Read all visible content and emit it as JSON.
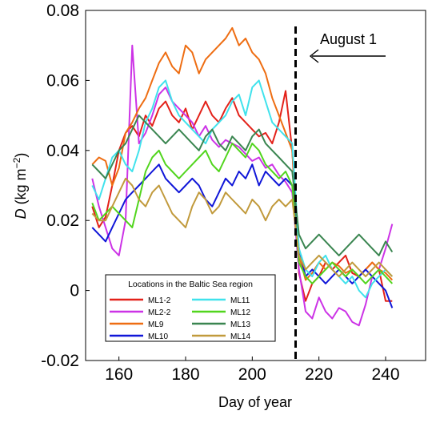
{
  "chart_data": {
    "type": "line",
    "xlabel": "Day of year",
    "ylabel_italic": "D",
    "ylabel_unit": "(kg m",
    "ylabel_exp": "−2",
    "ylabel_close": ")",
    "xlim": [
      150,
      252
    ],
    "ylim": [
      -0.02,
      0.08
    ],
    "xticks": [
      160,
      180,
      200,
      220,
      240
    ],
    "yticks": [
      {
        "value": -0.02,
        "label": "-0.02"
      },
      {
        "value": 0,
        "label": "0"
      },
      {
        "value": 0.02,
        "label": "0.02"
      },
      {
        "value": 0.04,
        "label": "0.04"
      },
      {
        "value": 0.06,
        "label": "0.06"
      },
      {
        "value": 0.08,
        "label": "0.08"
      }
    ],
    "annotation": {
      "label": "August 1",
      "x": 213
    },
    "legend": {
      "title": "Locations in the Baltic Sea region",
      "placement": "bottom-left"
    },
    "x": [
      152,
      154,
      156,
      158,
      160,
      162,
      164,
      166,
      168,
      170,
      172,
      174,
      176,
      178,
      180,
      182,
      184,
      186,
      188,
      190,
      192,
      194,
      196,
      198,
      200,
      202,
      204,
      206,
      208,
      210,
      212,
      214,
      216,
      218,
      220,
      222,
      224,
      226,
      228,
      230,
      232,
      234,
      236,
      238,
      240,
      242
    ],
    "series": [
      {
        "name": "ML1-2",
        "color": "#e32119",
        "values": [
          0.024,
          0.018,
          0.021,
          0.03,
          0.04,
          0.045,
          0.047,
          0.044,
          0.05,
          0.047,
          0.052,
          0.054,
          0.05,
          0.048,
          0.052,
          0.046,
          0.05,
          0.054,
          0.05,
          0.048,
          0.052,
          0.055,
          0.05,
          0.048,
          0.046,
          0.044,
          0.045,
          0.042,
          0.048,
          0.057,
          0.04,
          0.005,
          -0.003,
          0.002,
          0.004,
          0.008,
          0.006,
          0.008,
          0.01,
          0.005,
          0.004,
          0.006,
          0.008,
          0.006,
          -0.003,
          -0.003
        ]
      },
      {
        "name": "ML2-2",
        "color": "#cc33e6",
        "values": [
          0.032,
          0.024,
          0.018,
          0.012,
          0.01,
          0.02,
          0.07,
          0.042,
          0.045,
          0.05,
          0.056,
          0.058,
          0.054,
          0.052,
          0.05,
          0.048,
          0.044,
          0.047,
          0.043,
          0.041,
          0.043,
          0.042,
          0.041,
          0.039,
          0.037,
          0.038,
          0.035,
          0.036,
          0.033,
          0.031,
          0.028,
          0.006,
          -0.006,
          -0.008,
          -0.002,
          -0.006,
          -0.008,
          -0.005,
          -0.006,
          -0.009,
          -0.01,
          -0.004,
          0.004,
          0.006,
          0.012,
          0.019
        ]
      },
      {
        "name": "ML9",
        "color": "#ee6d12",
        "values": [
          0.036,
          0.038,
          0.037,
          0.03,
          0.035,
          0.045,
          0.048,
          0.052,
          0.055,
          0.06,
          0.065,
          0.068,
          0.064,
          0.062,
          0.07,
          0.068,
          0.062,
          0.066,
          0.068,
          0.07,
          0.072,
          0.075,
          0.07,
          0.072,
          0.068,
          0.066,
          0.062,
          0.055,
          0.05,
          0.045,
          0.04,
          0.01,
          0.003,
          0.005,
          0.008,
          0.006,
          0.008,
          0.007,
          0.005,
          0.006,
          0.004,
          0.006,
          0.008,
          0.006,
          0.005,
          0.003
        ]
      },
      {
        "name": "ML10",
        "color": "#1016d8",
        "values": [
          0.018,
          0.016,
          0.014,
          0.018,
          0.022,
          0.026,
          0.028,
          0.03,
          0.032,
          0.034,
          0.036,
          0.032,
          0.03,
          0.028,
          0.03,
          0.032,
          0.03,
          0.026,
          0.024,
          0.028,
          0.032,
          0.03,
          0.034,
          0.032,
          0.036,
          0.03,
          0.034,
          0.032,
          0.03,
          0.032,
          0.03,
          0.012,
          0.004,
          0.006,
          0.004,
          0.002,
          0.004,
          0.006,
          0.004,
          0.002,
          0.004,
          0.006,
          0.004,
          0.002,
          0.0,
          -0.005
        ]
      },
      {
        "name": "ML11",
        "color": "#40e2ec",
        "values": [
          0.03,
          0.026,
          0.032,
          0.038,
          0.04,
          0.036,
          0.034,
          0.04,
          0.048,
          0.052,
          0.058,
          0.06,
          0.054,
          0.05,
          0.048,
          0.046,
          0.044,
          0.042,
          0.046,
          0.048,
          0.05,
          0.054,
          0.056,
          0.05,
          0.058,
          0.06,
          0.054,
          0.048,
          0.046,
          0.044,
          0.042,
          0.012,
          0.006,
          0.004,
          0.008,
          0.01,
          0.006,
          0.004,
          0.002,
          0.004,
          0.0,
          -0.002,
          0.002,
          0.004,
          0.006,
          0.004
        ]
      },
      {
        "name": "ML12",
        "color": "#51d51d",
        "values": [
          0.025,
          0.02,
          0.022,
          0.024,
          0.022,
          0.02,
          0.018,
          0.026,
          0.034,
          0.038,
          0.04,
          0.036,
          0.034,
          0.032,
          0.034,
          0.036,
          0.038,
          0.04,
          0.036,
          0.034,
          0.038,
          0.042,
          0.04,
          0.038,
          0.042,
          0.04,
          0.036,
          0.034,
          0.032,
          0.034,
          0.03,
          0.008,
          0.004,
          0.002,
          0.004,
          0.006,
          0.008,
          0.006,
          0.004,
          0.006,
          0.004,
          0.002,
          0.004,
          0.006,
          0.004,
          0.002
        ]
      },
      {
        "name": "ML13",
        "color": "#3a8550",
        "values": [
          0.036,
          0.034,
          0.032,
          0.036,
          0.04,
          0.042,
          0.046,
          0.05,
          0.048,
          0.046,
          0.044,
          0.042,
          0.044,
          0.046,
          0.044,
          0.042,
          0.04,
          0.044,
          0.046,
          0.042,
          0.04,
          0.044,
          0.042,
          0.04,
          0.044,
          0.046,
          0.042,
          0.04,
          0.038,
          0.036,
          0.034,
          0.016,
          0.012,
          0.014,
          0.016,
          0.014,
          0.012,
          0.01,
          0.012,
          0.014,
          0.016,
          0.014,
          0.012,
          0.01,
          0.014,
          0.011
        ]
      },
      {
        "name": "ML14",
        "color": "#c19a3c",
        "values": [
          0.022,
          0.02,
          0.02,
          0.024,
          0.028,
          0.032,
          0.03,
          0.026,
          0.024,
          0.028,
          0.03,
          0.026,
          0.022,
          0.02,
          0.018,
          0.024,
          0.028,
          0.026,
          0.022,
          0.024,
          0.028,
          0.026,
          0.024,
          0.022,
          0.026,
          0.024,
          0.02,
          0.024,
          0.026,
          0.024,
          0.026,
          0.01,
          0.006,
          0.008,
          0.01,
          0.008,
          0.006,
          0.004,
          0.006,
          0.008,
          0.006,
          0.004,
          0.006,
          0.008,
          0.006,
          0.004
        ]
      }
    ]
  }
}
